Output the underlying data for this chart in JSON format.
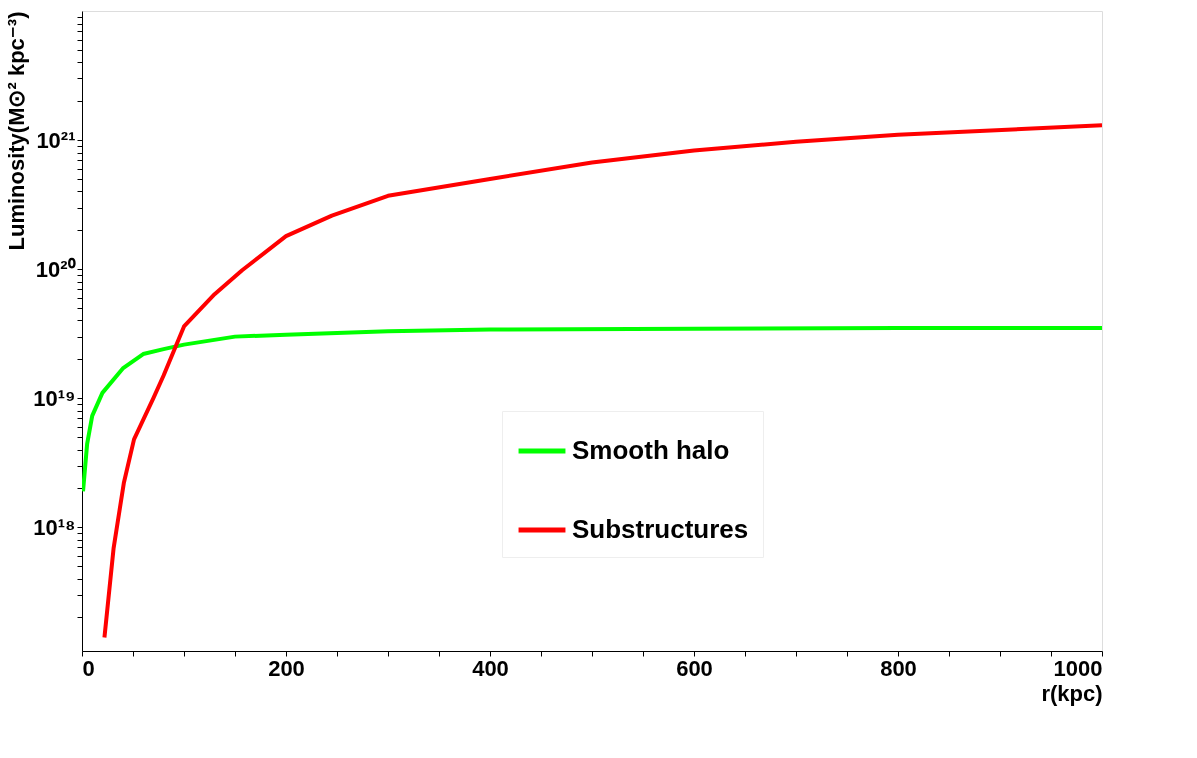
{
  "chart_data": {
    "type": "line",
    "xlabel": "r(kpc)",
    "ylabel": "Luminosity(M⊙² kpc⁻³)",
    "log": "y",
    "grid": false,
    "legend": "bottom right",
    "marker": "none",
    "line_style": "solid",
    "xlim": [
      0,
      1000
    ],
    "ylim": [
      1.1e+17,
      1e+22
    ],
    "xticks": [
      0,
      {
        "value": 50,
        "label": null
      },
      {
        "value": 100,
        "label": null
      },
      {
        "value": 150,
        "label": null
      },
      200,
      {
        "value": 250,
        "label": null
      },
      {
        "value": 300,
        "label": null
      },
      {
        "value": 350,
        "label": null
      },
      400,
      {
        "value": 450,
        "label": null
      },
      {
        "value": 500,
        "label": null
      },
      {
        "value": 550,
        "label": null
      },
      600,
      {
        "value": 650,
        "label": null
      },
      {
        "value": 700,
        "label": null
      },
      {
        "value": 750,
        "label": null
      },
      800,
      {
        "value": 850,
        "label": null
      },
      {
        "value": 900,
        "label": null
      },
      {
        "value": 950,
        "label": null
      },
      1000
    ],
    "yticks": [
      {
        "value": 2e+17,
        "label": null
      },
      {
        "value": 3e+17,
        "label": null
      },
      {
        "value": 4e+17,
        "label": null
      },
      {
        "value": 5e+17,
        "label": null
      },
      {
        "value": 6e+17,
        "label": null
      },
      {
        "value": 7e+17,
        "label": null
      },
      {
        "value": 8e+17,
        "label": null
      },
      {
        "value": 9e+17,
        "label": null
      },
      {
        "value": 1e+18,
        "label": "10¹⁸"
      },
      {
        "value": 2e+18,
        "label": null
      },
      {
        "value": 3e+18,
        "label": null
      },
      {
        "value": 4e+18,
        "label": null
      },
      {
        "value": 5e+18,
        "label": null
      },
      {
        "value": 6e+18,
        "label": null
      },
      {
        "value": 7e+18,
        "label": null
      },
      {
        "value": 8e+18,
        "label": null
      },
      {
        "value": 9e+18,
        "label": null
      },
      {
        "value": 1e+19,
        "label": "10¹⁹"
      },
      {
        "value": 2e+19,
        "label": null
      },
      {
        "value": 3e+19,
        "label": null
      },
      {
        "value": 4e+19,
        "label": null
      },
      {
        "value": 5e+19,
        "label": null
      },
      {
        "value": 6e+19,
        "label": null
      },
      {
        "value": 7e+19,
        "label": null
      },
      {
        "value": 8e+19,
        "label": null
      },
      {
        "value": 9e+19,
        "label": null
      },
      {
        "value": 1e+20,
        "label": "10²⁰"
      },
      {
        "value": 2e+20,
        "label": null
      },
      {
        "value": 3e+20,
        "label": null
      },
      {
        "value": 4e+20,
        "label": null
      },
      {
        "value": 5e+20,
        "label": null
      },
      {
        "value": 6e+20,
        "label": null
      },
      {
        "value": 7e+20,
        "label": null
      },
      {
        "value": 8e+20,
        "label": null
      },
      {
        "value": 9e+20,
        "label": null
      },
      {
        "value": 1e+21,
        "label": "10²¹"
      },
      {
        "value": 2e+21,
        "label": null
      },
      {
        "value": 3e+21,
        "label": null
      },
      {
        "value": 4e+21,
        "label": null
      },
      {
        "value": 5e+21,
        "label": null
      },
      {
        "value": 6e+21,
        "label": null
      },
      {
        "value": 7e+21,
        "label": null
      },
      {
        "value": 8e+21,
        "label": null
      },
      {
        "value": 9e+21,
        "label": null
      }
    ],
    "series": [
      {
        "name": "Smooth halo",
        "color": "#00ff00",
        "x": [
          1,
          5,
          10,
          20,
          40,
          60,
          80,
          100,
          150,
          200,
          300,
          400,
          600,
          800,
          1000
        ],
        "values": [
          1.9e+18,
          4.4e+18,
          7.3e+18,
          1.1e+19,
          1.7e+19,
          2.2e+19,
          2.4e+19,
          2.6e+19,
          3e+19,
          3.1e+19,
          3.3e+19,
          3.4e+19,
          3.45e+19,
          3.5e+19,
          3.5e+19
        ]
      },
      {
        "name": "Substructures",
        "color": "#ff0000",
        "x": [
          22,
          31,
          41,
          51,
          70,
          80,
          100,
          130,
          157,
          200,
          245,
          300,
          400,
          500,
          600,
          700,
          800,
          1000
        ],
        "values": [
          1.4e+17,
          6.9e+17,
          2.2e+18,
          4.8e+18,
          1e+19,
          1.5e+19,
          3.6e+19,
          6.4e+19,
          9.8e+19,
          1.8e+20,
          2.6e+20,
          3.7e+20,
          5e+20,
          6.7e+20,
          8.3e+20,
          9.7e+20,
          1.1e+21,
          1.3e+21
        ]
      }
    ]
  }
}
